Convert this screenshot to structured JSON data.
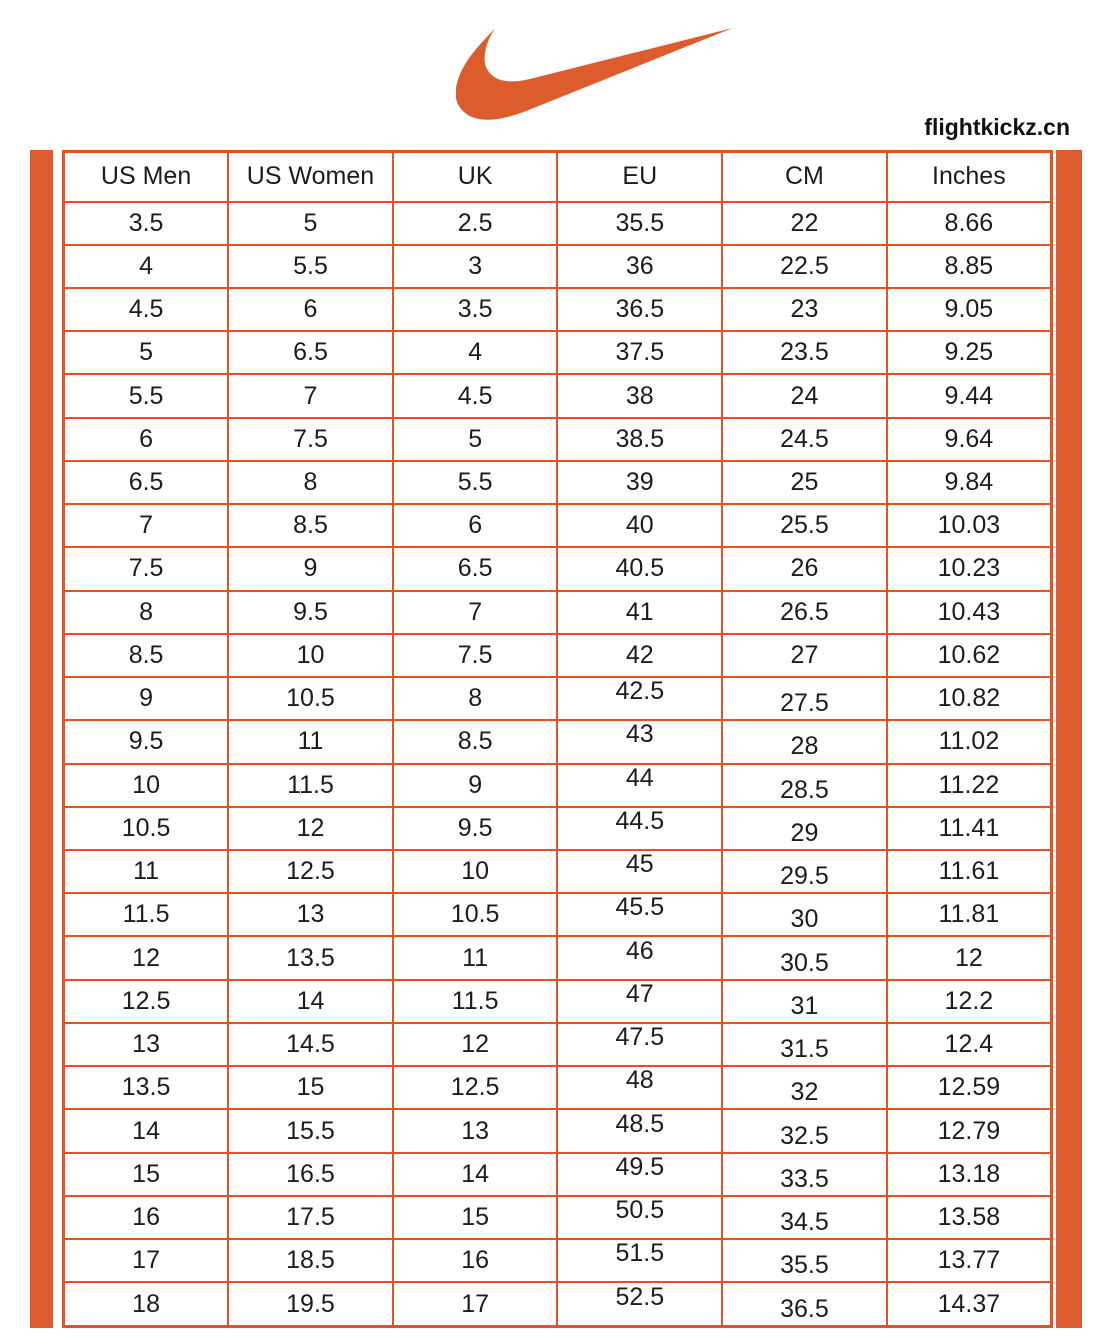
{
  "brand": {
    "logo_icon": "nike-swoosh-icon",
    "site": "flightkickz.cn"
  },
  "colors": {
    "accent": "#DD5C2D",
    "grid_line": "#E8501F",
    "text": "#1C1C1A",
    "background": "#FFFFFF"
  },
  "chart_data": {
    "type": "table",
    "columns": [
      "US Men",
      "US Women",
      "UK",
      "EU",
      "CM",
      "Inches"
    ],
    "rows": [
      [
        "3.5",
        "5",
        "2.5",
        "35.5",
        "22",
        "8.66"
      ],
      [
        "4",
        "5.5",
        "3",
        "36",
        "22.5",
        "8.85"
      ],
      [
        "4.5",
        "6",
        "3.5",
        "36.5",
        "23",
        "9.05"
      ],
      [
        "5",
        "6.5",
        "4",
        "37.5",
        "23.5",
        "9.25"
      ],
      [
        "5.5",
        "7",
        "4.5",
        "38",
        "24",
        "9.44"
      ],
      [
        "6",
        "7.5",
        "5",
        "38.5",
        "24.5",
        "9.64"
      ],
      [
        "6.5",
        "8",
        "5.5",
        "39",
        "25",
        "9.84"
      ],
      [
        "7",
        "8.5",
        "6",
        "40",
        "25.5",
        "10.03"
      ],
      [
        "7.5",
        "9",
        "6.5",
        "40.5",
        "26",
        "10.23"
      ],
      [
        "8",
        "9.5",
        "7",
        "41",
        "26.5",
        "10.43"
      ],
      [
        "8.5",
        "10",
        "7.5",
        "42",
        "27",
        "10.62"
      ],
      [
        "9",
        "10.5",
        "8",
        "42.5",
        "27.5",
        "10.82"
      ],
      [
        "9.5",
        "11",
        "8.5",
        "43",
        "28",
        "11.02"
      ],
      [
        "10",
        "11.5",
        "9",
        "44",
        "28.5",
        "11.22"
      ],
      [
        "10.5",
        "12",
        "9.5",
        "44.5",
        "29",
        "11.41"
      ],
      [
        "11",
        "12.5",
        "10",
        "45",
        "29.5",
        "11.61"
      ],
      [
        "11.5",
        "13",
        "10.5",
        "45.5",
        "30",
        "11.81"
      ],
      [
        "12",
        "13.5",
        "11",
        "46",
        "30.5",
        "12"
      ],
      [
        "12.5",
        "14",
        "11.5",
        "47",
        "31",
        "12.2"
      ],
      [
        "13",
        "14.5",
        "12",
        "47.5",
        "31.5",
        "12.4"
      ],
      [
        "13.5",
        "15",
        "12.5",
        "48",
        "32",
        "12.59"
      ],
      [
        "14",
        "15.5",
        "13",
        "48.5",
        "32.5",
        "12.79"
      ],
      [
        "15",
        "16.5",
        "14",
        "49.5",
        "33.5",
        "13.18"
      ],
      [
        "16",
        "17.5",
        "15",
        "50.5",
        "34.5",
        "13.58"
      ],
      [
        "17",
        "18.5",
        "16",
        "51.5",
        "35.5",
        "13.77"
      ],
      [
        "18",
        "19.5",
        "17",
        "52.5",
        "36.5",
        "14.37"
      ]
    ]
  }
}
